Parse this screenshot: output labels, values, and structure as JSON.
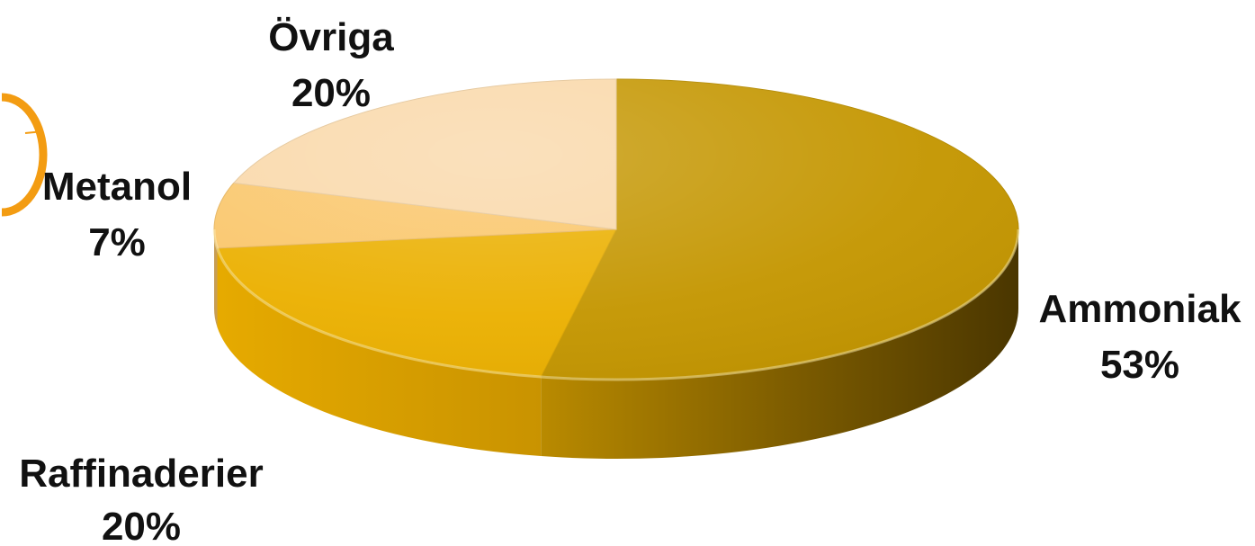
{
  "chart_data": {
    "type": "pie",
    "style": "3d",
    "title": "",
    "slices": [
      {
        "label": "Ammoniak",
        "value": 53,
        "value_label": "53%",
        "color": "#C49600"
      },
      {
        "label": "Raffinaderier",
        "value": 20,
        "value_label": "20%",
        "color": "#EBB000"
      },
      {
        "label": "Metanol",
        "value": 7,
        "value_label": "7%",
        "color": "#FAC66A"
      },
      {
        "label": "Övriga",
        "value": 20,
        "value_label": "20%",
        "color": "#F9D8A9"
      }
    ]
  },
  "decor": {
    "accent_color": "#F39C12"
  }
}
